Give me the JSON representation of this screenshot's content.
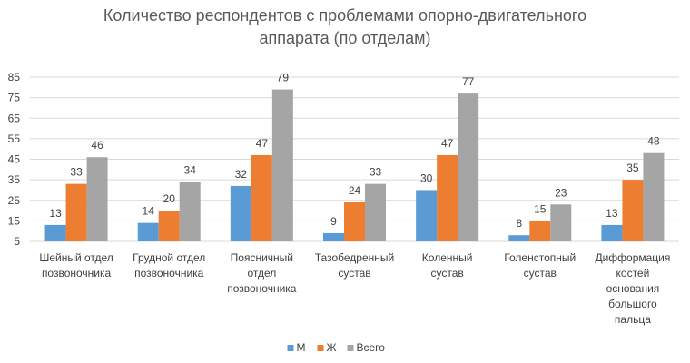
{
  "chart_data": {
    "type": "bar",
    "title": [
      "Количество респондентов с проблемами опорно-двигательного",
      "аппарата (по отделам)"
    ],
    "categories": [
      [
        "Шейный отдел",
        "позвоночника"
      ],
      [
        "Грудной отдел",
        "позвоночника"
      ],
      [
        "Поясничный",
        "отдел",
        "позвоночника"
      ],
      [
        "Тазобедренный",
        "сустав"
      ],
      [
        "Коленный",
        "сустав"
      ],
      [
        "Голенстопный",
        "сустав"
      ],
      [
        "Дифформация",
        "костей",
        "основания",
        "большого",
        "пальца"
      ]
    ],
    "series": [
      {
        "name": "М",
        "color": "#5B9BD5",
        "values": [
          13,
          14,
          32,
          9,
          30,
          8,
          13
        ]
      },
      {
        "name": "Ж",
        "color": "#ED7D31",
        "values": [
          33,
          20,
          47,
          24,
          47,
          15,
          35
        ]
      },
      {
        "name": "Всего",
        "color": "#A5A5A5",
        "values": [
          46,
          34,
          79,
          33,
          77,
          23,
          48
        ]
      }
    ],
    "y_ticks": [
      5,
      15,
      25,
      35,
      45,
      55,
      65,
      75,
      85
    ],
    "ylim": [
      5,
      85
    ],
    "grid": true,
    "legend_position": "bottom"
  }
}
